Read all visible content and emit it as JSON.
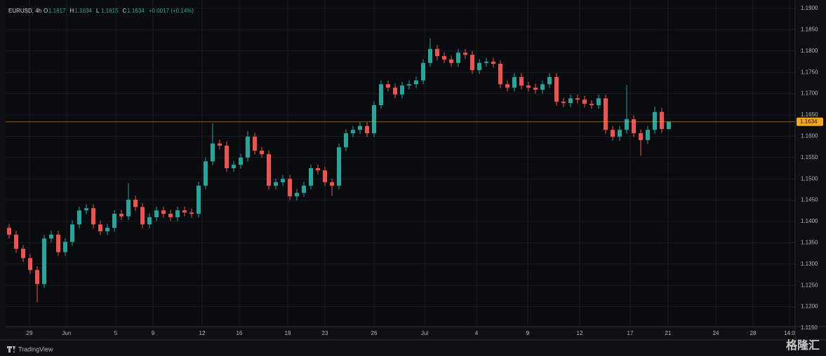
{
  "chart_data": {
    "type": "candlestick",
    "title": "EURUSD, 4h",
    "header": [
      {
        "label": "O",
        "value": 1.1617
      },
      {
        "label": "H",
        "value": 1.1634
      },
      {
        "label": "L",
        "value": 1.1615
      },
      {
        "label": "C",
        "value": 1.1634
      }
    ],
    "change": {
      "value": 0.0017,
      "label": "+0.0017 (+0.14%)"
    },
    "open": [
      1.1385,
      1.1369,
      1.1336,
      1.1314,
      1.1286,
      1.1253,
      1.136,
      1.1369,
      1.1328,
      1.1352,
      1.1393,
      1.1426,
      1.1431,
      1.1393,
      1.1377,
      1.1385,
      1.1418,
      1.1412,
      1.1451,
      1.1434,
      1.1393,
      1.141,
      1.1426,
      1.1418,
      1.141,
      1.1426,
      1.1421,
      1.1418,
      1.1484,
      1.1541,
      1.1583,
      1.1578,
      1.1525,
      1.1533,
      1.155,
      1.1599,
      1.1566,
      1.1558,
      1.1484,
      1.1492,
      1.15,
      1.1459,
      1.1467,
      1.1484,
      1.1525,
      1.152,
      1.1492,
      1.1484,
      1.1574,
      1.1607,
      1.1615,
      1.1624,
      1.1607,
      1.1673,
      1.1722,
      1.1714,
      1.1698,
      1.1719,
      1.1722,
      1.1731,
      1.1772,
      1.1805,
      1.1788,
      1.178,
      1.1772,
      1.1796,
      1.1791,
      1.1755,
      1.1772,
      1.1775,
      1.177,
      1.1722,
      1.1714,
      1.1739,
      1.1719,
      1.1714,
      1.1709,
      1.1722,
      1.1739,
      1.1681,
      1.1678,
      1.1689,
      1.1686,
      1.1676,
      1.1673,
      1.1689,
      1.1615,
      1.1599,
      1.1615,
      1.164,
      1.1607,
      1.1591,
      1.1615,
      1.1657,
      1.1617
    ],
    "high": [
      1.1394,
      1.1378,
      1.1345,
      1.1323,
      1.1295,
      1.1369,
      1.1378,
      1.1378,
      1.1361,
      1.1402,
      1.1435,
      1.144,
      1.144,
      1.1402,
      1.1394,
      1.1427,
      1.1427,
      1.149,
      1.146,
      1.1443,
      1.1419,
      1.1435,
      1.1435,
      1.1427,
      1.1435,
      1.1435,
      1.143,
      1.1493,
      1.155,
      1.163,
      1.1592,
      1.1587,
      1.1542,
      1.1559,
      1.1612,
      1.1608,
      1.1575,
      1.1567,
      1.1501,
      1.1509,
      1.1509,
      1.1476,
      1.1493,
      1.1534,
      1.1534,
      1.1529,
      1.1501,
      1.1583,
      1.1616,
      1.1624,
      1.1633,
      1.1633,
      1.1682,
      1.1731,
      1.1731,
      1.1723,
      1.1728,
      1.1731,
      1.174,
      1.1781,
      1.183,
      1.1814,
      1.1797,
      1.1789,
      1.1805,
      1.1805,
      1.18,
      1.1781,
      1.1784,
      1.1784,
      1.1779,
      1.1731,
      1.1748,
      1.1748,
      1.1728,
      1.1723,
      1.1731,
      1.1748,
      1.1748,
      1.169,
      1.1698,
      1.1698,
      1.1695,
      1.1685,
      1.1698,
      1.1698,
      1.1624,
      1.1624,
      1.172,
      1.1649,
      1.1616,
      1.1624,
      1.167,
      1.1666,
      1.1634
    ],
    "low": [
      1.136,
      1.1327,
      1.1305,
      1.1277,
      1.121,
      1.1244,
      1.1351,
      1.1319,
      1.1319,
      1.1343,
      1.1384,
      1.1417,
      1.1384,
      1.1368,
      1.1368,
      1.1376,
      1.1403,
      1.1403,
      1.1425,
      1.1384,
      1.1384,
      1.1401,
      1.1409,
      1.1401,
      1.1401,
      1.1412,
      1.1409,
      1.1409,
      1.1475,
      1.1532,
      1.1569,
      1.1516,
      1.1516,
      1.1524,
      1.1541,
      1.1557,
      1.1549,
      1.1475,
      1.1475,
      1.1483,
      1.145,
      1.145,
      1.1458,
      1.1475,
      1.1511,
      1.1483,
      1.146,
      1.1475,
      1.1565,
      1.1598,
      1.1606,
      1.1598,
      1.1598,
      1.1664,
      1.1705,
      1.1689,
      1.1689,
      1.171,
      1.1713,
      1.1722,
      1.1763,
      1.1779,
      1.1771,
      1.1763,
      1.1763,
      1.1782,
      1.1746,
      1.1746,
      1.1763,
      1.1761,
      1.1713,
      1.1705,
      1.1705,
      1.171,
      1.1705,
      1.17,
      1.17,
      1.1713,
      1.1672,
      1.1669,
      1.1669,
      1.1677,
      1.1667,
      1.1664,
      1.1664,
      1.1606,
      1.159,
      1.159,
      1.1606,
      1.1598,
      1.1555,
      1.1582,
      1.1606,
      1.1608,
      1.1615
    ],
    "close": [
      1.1369,
      1.1336,
      1.1314,
      1.1286,
      1.1253,
      1.136,
      1.1369,
      1.1328,
      1.1352,
      1.1393,
      1.1426,
      1.1431,
      1.1393,
      1.1377,
      1.1385,
      1.1418,
      1.1412,
      1.1451,
      1.1434,
      1.1393,
      1.141,
      1.1426,
      1.1418,
      1.141,
      1.1426,
      1.1421,
      1.1418,
      1.1484,
      1.1541,
      1.1583,
      1.1578,
      1.1525,
      1.1533,
      1.155,
      1.1599,
      1.1566,
      1.1558,
      1.1484,
      1.1492,
      1.15,
      1.1459,
      1.1467,
      1.1484,
      1.1525,
      1.152,
      1.1492,
      1.1484,
      1.1574,
      1.1607,
      1.1615,
      1.1624,
      1.1607,
      1.1673,
      1.1722,
      1.1714,
      1.1698,
      1.1719,
      1.1722,
      1.1731,
      1.1772,
      1.1805,
      1.1788,
      1.178,
      1.1772,
      1.1796,
      1.1791,
      1.1755,
      1.1772,
      1.1775,
      1.177,
      1.1722,
      1.1714,
      1.1739,
      1.1719,
      1.1714,
      1.1709,
      1.1722,
      1.1739,
      1.1681,
      1.1678,
      1.1689,
      1.1686,
      1.1676,
      1.1673,
      1.1689,
      1.1615,
      1.1599,
      1.1615,
      1.164,
      1.1607,
      1.1591,
      1.1615,
      1.1657,
      1.1617,
      1.1634
    ],
    "up_color": "#26a69a",
    "down_color": "#ef5350",
    "last_price_color": "#f5a623",
    "ylim": [
      1.115,
      1.19
    ],
    "yticks": [
      {
        "value": 1.115,
        "label": "1.1150"
      },
      {
        "value": 1.12,
        "label": "1.1200"
      },
      {
        "value": 1.125,
        "label": "1.1250"
      },
      {
        "value": 1.13,
        "label": "1.1300"
      },
      {
        "value": 1.135,
        "label": "1.1350"
      },
      {
        "value": 1.14,
        "label": "1.1400"
      },
      {
        "value": 1.145,
        "label": "1.1450"
      },
      {
        "value": 1.15,
        "label": "1.1500"
      },
      {
        "value": 1.155,
        "label": "1.1550"
      },
      {
        "value": 1.16,
        "label": "1.1600"
      },
      {
        "value": 1.165,
        "label": "1.1650"
      },
      {
        "value": 1.17,
        "label": "1.1700"
      },
      {
        "value": 1.175,
        "label": "1.1750"
      },
      {
        "value": 1.18,
        "label": "1.1800"
      },
      {
        "value": 1.185,
        "label": "1.1850"
      },
      {
        "value": 1.19,
        "label": "1.1900"
      }
    ],
    "xlim": [
      0,
      112.5
    ],
    "xticks": [
      {
        "value": 3.4,
        "label": "29"
      },
      {
        "value": 8.7,
        "label": "Jun"
      },
      {
        "value": 15.7,
        "label": "5"
      },
      {
        "value": 21,
        "label": "9"
      },
      {
        "value": 28,
        "label": "12"
      },
      {
        "value": 33.3,
        "label": "16"
      },
      {
        "value": 40.2,
        "label": "19"
      },
      {
        "value": 45.5,
        "label": "23"
      },
      {
        "value": 52.5,
        "label": "26"
      },
      {
        "value": 59.7,
        "label": "Jul"
      },
      {
        "value": 67.1,
        "label": "4"
      },
      {
        "value": 74.4,
        "label": "9"
      },
      {
        "value": 81.8,
        "label": "12"
      },
      {
        "value": 89,
        "label": "17"
      },
      {
        "value": 94.4,
        "label": "21"
      },
      {
        "value": 101.2,
        "label": "24"
      },
      {
        "value": 106.5,
        "label": "28"
      },
      {
        "value": 111.7,
        "label": "14:0"
      }
    ],
    "grid": true
  },
  "branding": "TradingView",
  "watermark": "格隆汇"
}
